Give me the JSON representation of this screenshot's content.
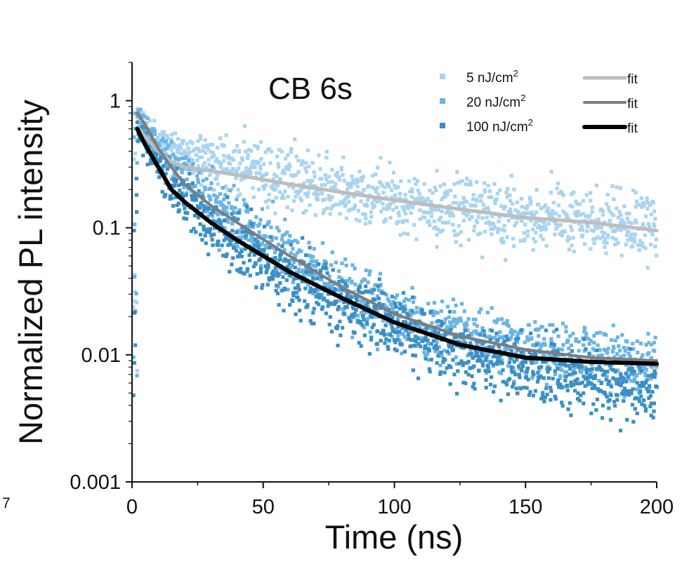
{
  "chart_data": {
    "type": "scatter",
    "title": "CB 6s",
    "xlabel": "Time (ns)",
    "ylabel": "Normalized PL intensity",
    "xlim": [
      0,
      200
    ],
    "ylim": [
      0.001,
      2
    ],
    "yscale": "log",
    "grid": false,
    "legend_position": "top-right",
    "x_ticks": [
      0,
      50,
      100,
      150,
      200
    ],
    "x_tick_labels": [
      "0",
      "50",
      "100",
      "150",
      "200"
    ],
    "y_ticks": [
      0.001,
      0.01,
      0.1,
      1
    ],
    "y_tick_labels": [
      "0.001",
      "0.01",
      "0.1",
      "1"
    ],
    "left_margin_text": "7",
    "series": [
      {
        "name": "5 nJ/cm",
        "name_sup": "2",
        "kind": "data",
        "color": "#a9d4f0",
        "spread": 0.42,
        "x": [
          2,
          5,
          10,
          20,
          30,
          40,
          60,
          80,
          100,
          125,
          150,
          175,
          200
        ],
        "y": [
          0.75,
          0.6,
          0.48,
          0.4,
          0.33,
          0.3,
          0.24,
          0.2,
          0.17,
          0.14,
          0.12,
          0.11,
          0.1
        ]
      },
      {
        "name": "20 nJ/cm",
        "name_sup": "2",
        "kind": "data",
        "color": "#6bb4e4",
        "spread": 0.42,
        "x": [
          2,
          5,
          10,
          20,
          30,
          40,
          60,
          80,
          100,
          125,
          150,
          175,
          200
        ],
        "y": [
          0.8,
          0.62,
          0.42,
          0.24,
          0.16,
          0.11,
          0.058,
          0.032,
          0.02,
          0.014,
          0.011,
          0.0095,
          0.009
        ]
      },
      {
        "name": "100 nJ/cm",
        "name_sup": "2",
        "kind": "data",
        "color": "#3b8fc4",
        "spread": 0.45,
        "x": [
          2,
          5,
          10,
          20,
          30,
          40,
          60,
          80,
          100,
          125,
          150,
          175,
          200
        ],
        "y": [
          0.6,
          0.45,
          0.3,
          0.16,
          0.11,
          0.075,
          0.042,
          0.026,
          0.017,
          0.011,
          0.008,
          0.0062,
          0.005
        ]
      },
      {
        "name": "fit",
        "kind": "fit",
        "color": "#bdbdbd",
        "x": [
          2,
          5,
          10,
          15,
          20,
          30,
          40,
          60,
          80,
          100,
          125,
          150,
          175,
          200
        ],
        "y": [
          0.62,
          0.52,
          0.4,
          0.33,
          0.3,
          0.28,
          0.26,
          0.22,
          0.19,
          0.165,
          0.14,
          0.12,
          0.11,
          0.095
        ]
      },
      {
        "name": "fit",
        "kind": "fit",
        "color": "#7d7d7d",
        "x": [
          2,
          5,
          10,
          15,
          20,
          30,
          40,
          50,
          60,
          80,
          100,
          125,
          150,
          175,
          200
        ],
        "y": [
          0.8,
          0.65,
          0.42,
          0.3,
          0.22,
          0.15,
          0.11,
          0.081,
          0.06,
          0.034,
          0.021,
          0.014,
          0.011,
          0.0095,
          0.009
        ]
      },
      {
        "name": "fit",
        "kind": "fit",
        "color": "#000000",
        "x": [
          2,
          5,
          10,
          15,
          20,
          30,
          40,
          50,
          60,
          80,
          100,
          125,
          150,
          175,
          200
        ],
        "y": [
          0.6,
          0.45,
          0.3,
          0.2,
          0.16,
          0.11,
          0.08,
          0.06,
          0.045,
          0.028,
          0.018,
          0.012,
          0.0095,
          0.0088,
          0.0085
        ]
      }
    ]
  }
}
